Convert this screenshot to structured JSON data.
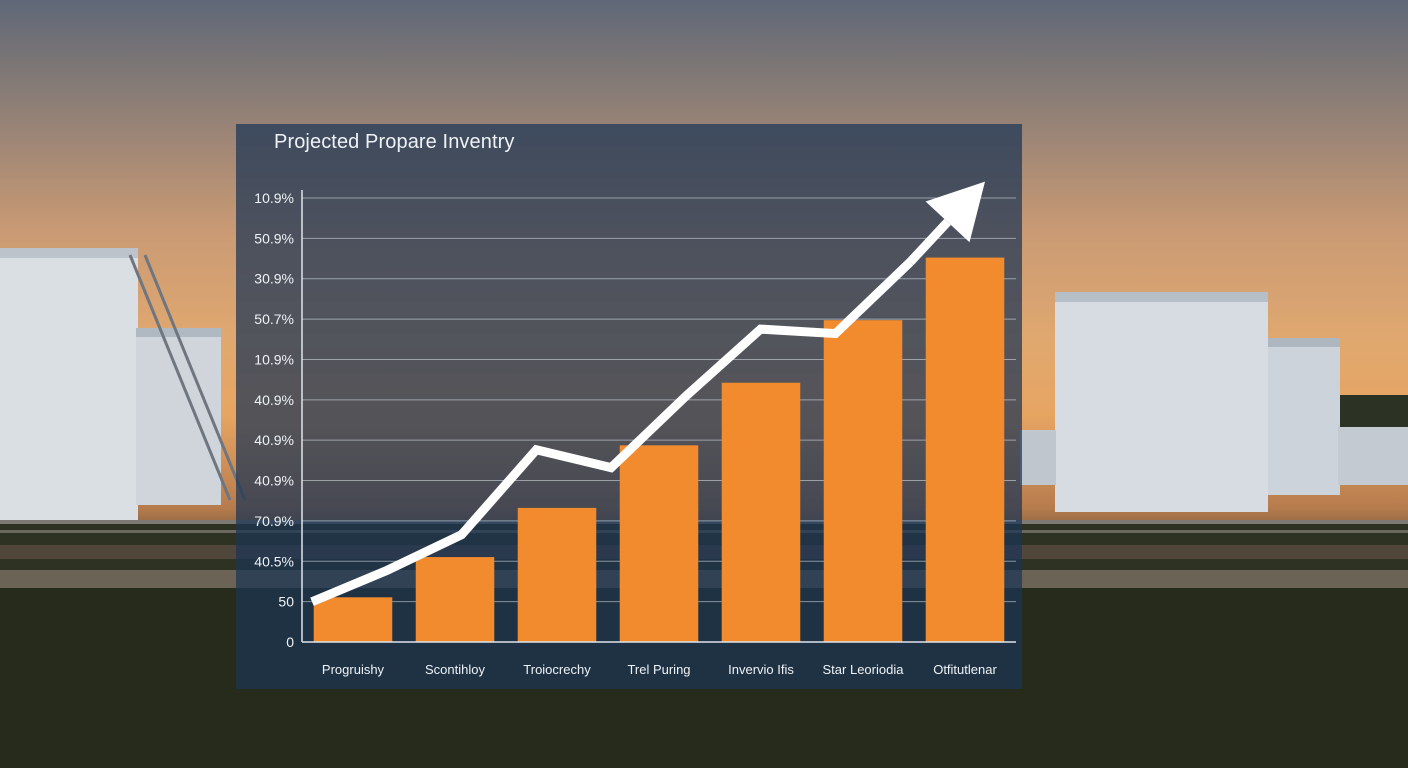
{
  "chart_data": {
    "type": "bar",
    "title": "Projected Propare Inventry",
    "categories": [
      "Progruishy",
      "Scontihloy",
      "Troiocrechy",
      "Trel Puring",
      "Invervio Ifis",
      "Star Leoriodia",
      "Otfitutlenar"
    ],
    "values": [
      1.0,
      1.9,
      3.0,
      4.4,
      5.8,
      7.2,
      8.6
    ],
    "ylim": [
      0,
      10
    ],
    "ytick_labels": [
      "0",
      "50",
      "40.5%",
      "70.9%",
      "40.9%",
      "40.9%",
      "40.9%",
      "10.9%",
      "50.7%",
      "30.9%",
      "50.9%",
      "10.9%"
    ],
    "trend_line": [
      0.9,
      1.6,
      2.4,
      4.3,
      3.9,
      5.5,
      7.0,
      6.9,
      8.5,
      10.3
    ],
    "grid": true,
    "bar_color": "#f28a2e",
    "trend_color": "#ffffff"
  }
}
